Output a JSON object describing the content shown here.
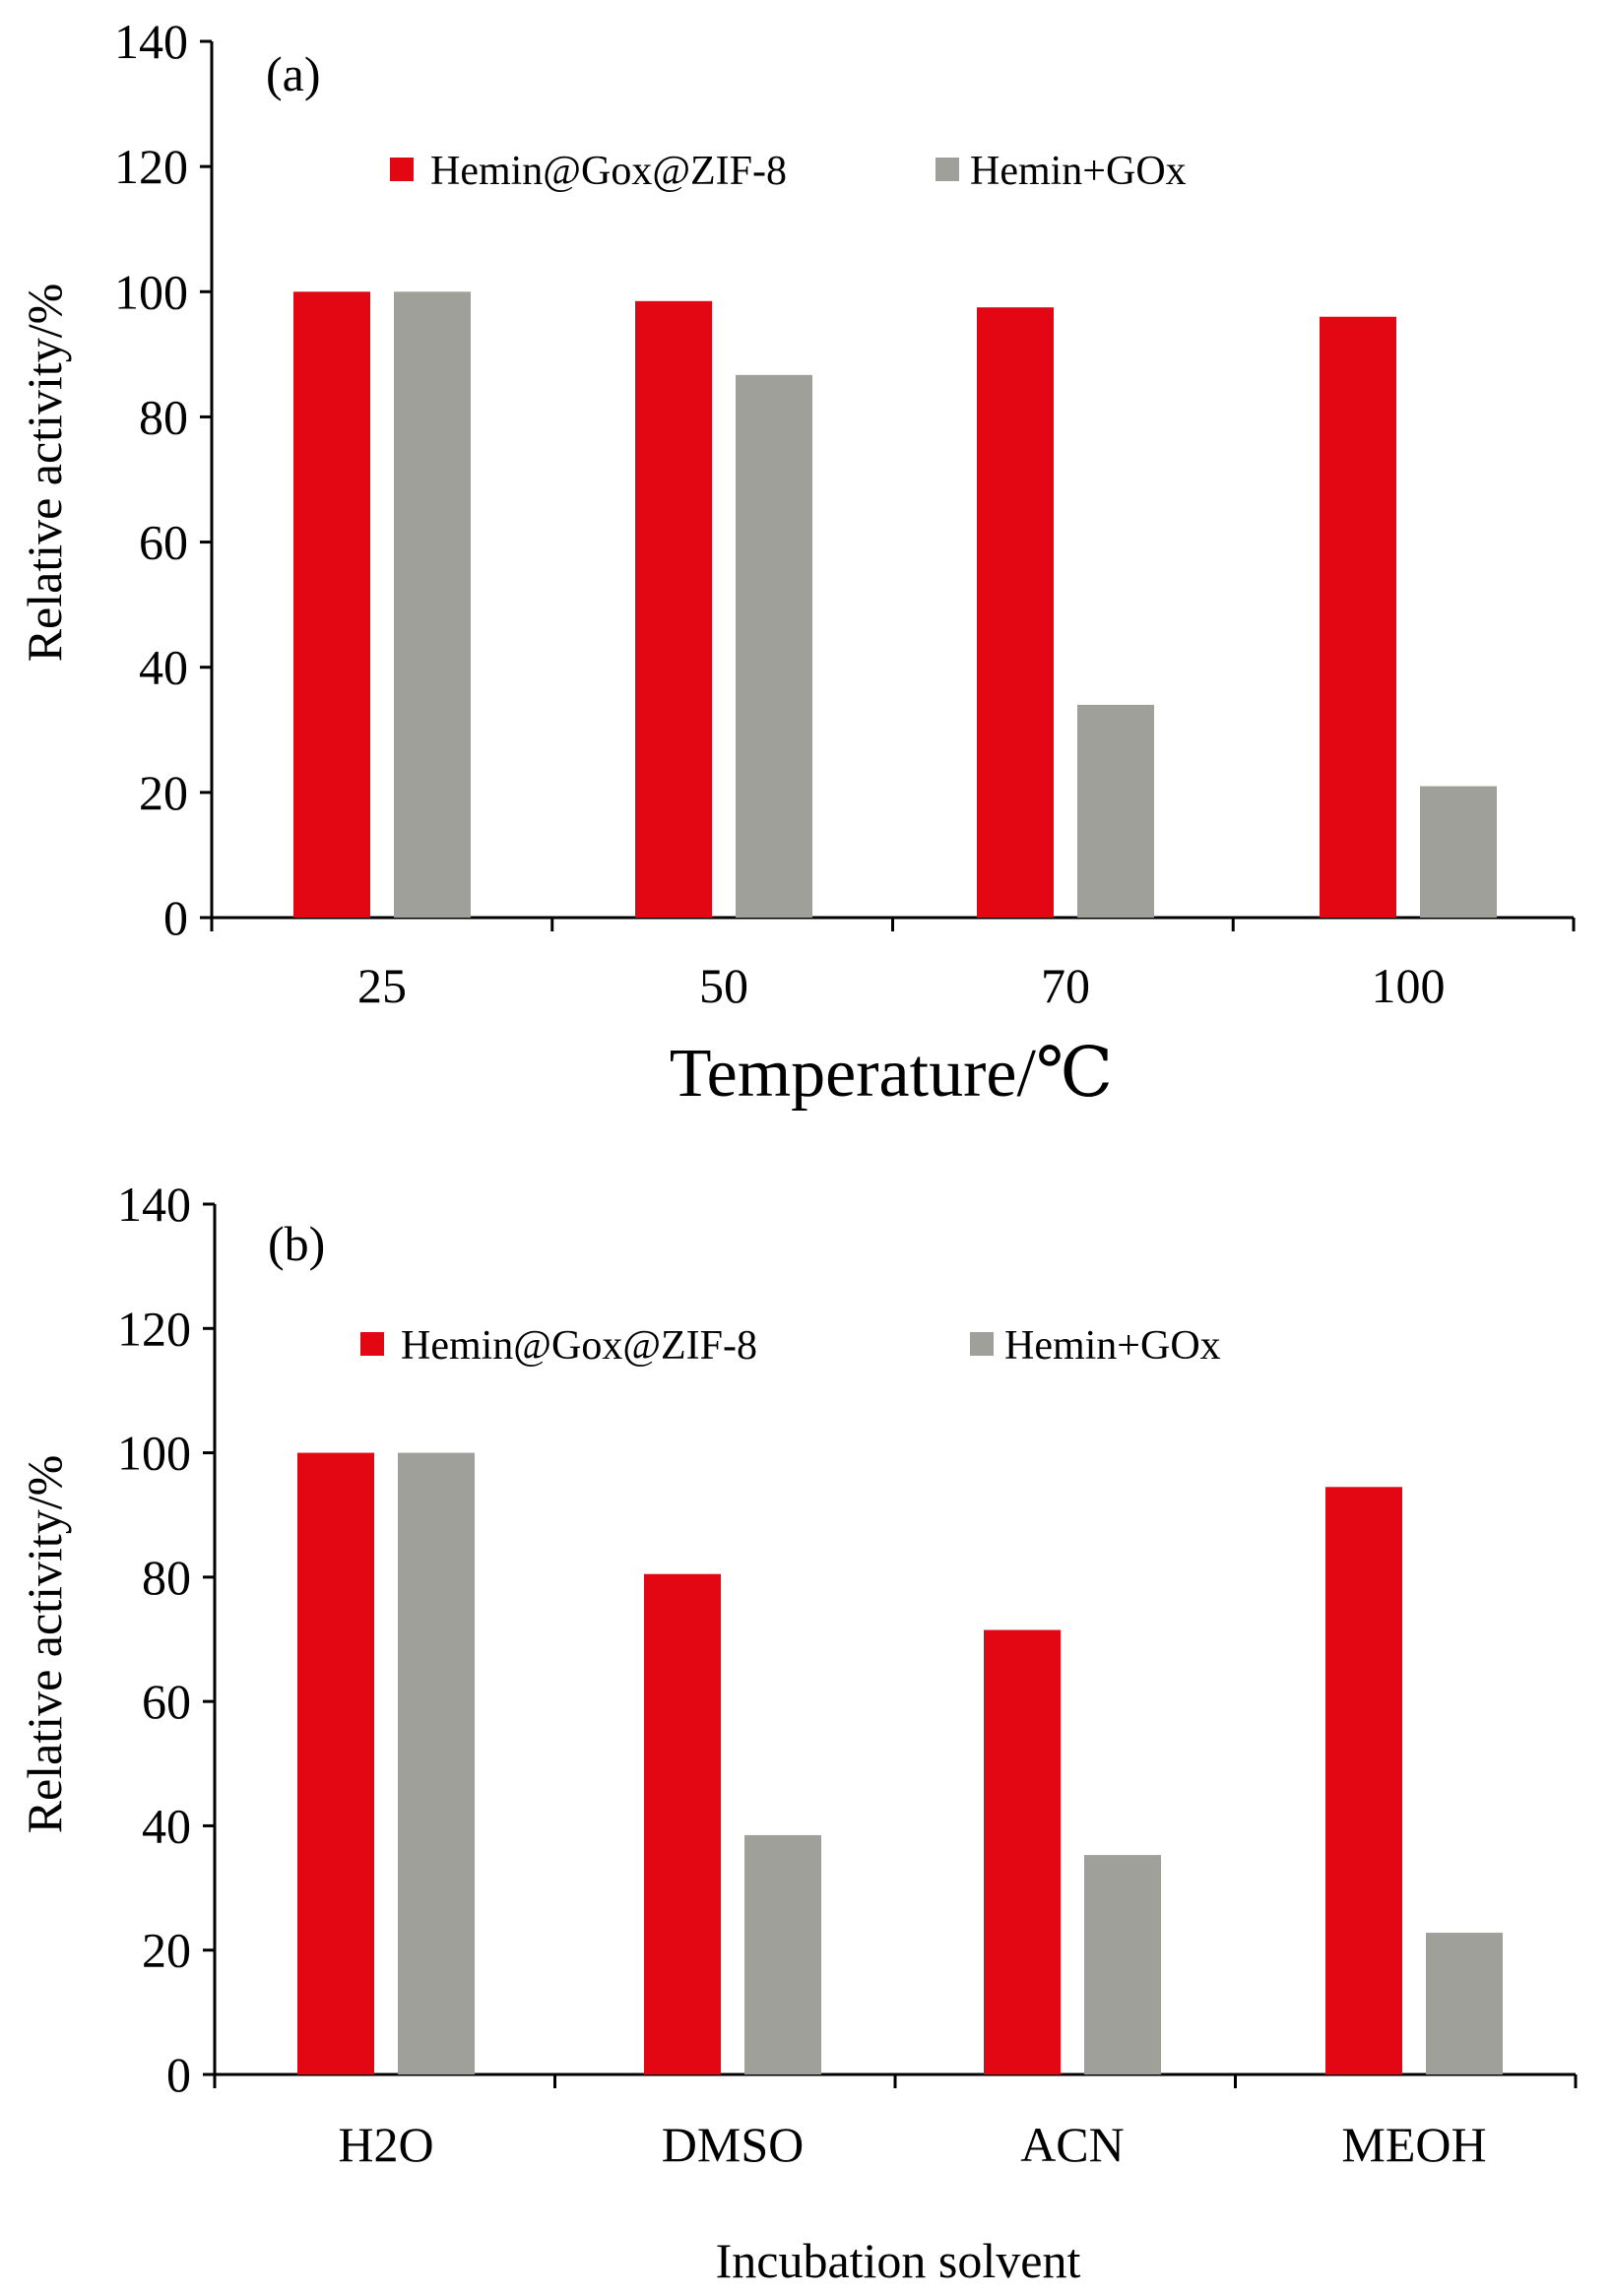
{
  "colors": {
    "series_a": "#e30613",
    "series_b": "#a0a09b",
    "axis": "#000000"
  },
  "chart_data": [
    {
      "type": "bar",
      "panel_label": "(a)",
      "categories": [
        "25",
        "50",
        "70",
        "100"
      ],
      "series": [
        {
          "name": "Hemin@Gox@ZIF-8",
          "values": [
            100,
            98.5,
            97.5,
            96
          ]
        },
        {
          "name": "Hemin+GOx",
          "values": [
            100,
            86.7,
            34,
            21
          ]
        }
      ],
      "xlabel": "Temperature/℃",
      "ylabel": "Relative activity/%",
      "ylim": [
        0,
        140
      ],
      "yticks": [
        "0",
        "20",
        "40",
        "60",
        "80",
        "100",
        "120",
        "140"
      ],
      "grid": false,
      "legend_position": "top"
    },
    {
      "type": "bar",
      "panel_label": "(b)",
      "categories": [
        "H2O",
        "DMSO",
        "ACN",
        "MEOH"
      ],
      "series": [
        {
          "name": "Hemin@Gox@ZIF-8",
          "values": [
            100,
            80.5,
            71.5,
            94.5
          ]
        },
        {
          "name": "Hemin+GOx",
          "values": [
            100,
            38.5,
            35.3,
            22.8
          ]
        }
      ],
      "xlabel": "Incubation solvent",
      "ylabel": "Relative activity/%",
      "ylim": [
        0,
        140
      ],
      "yticks": [
        "0",
        "20",
        "40",
        "60",
        "80",
        "100",
        "120",
        "140"
      ],
      "grid": false,
      "legend_position": "top"
    }
  ]
}
